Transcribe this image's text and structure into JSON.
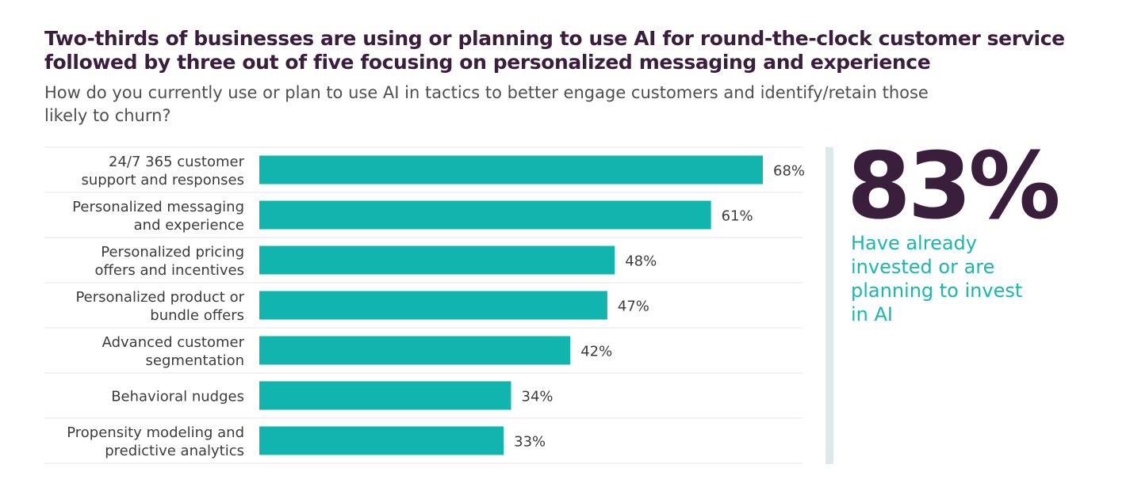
{
  "chart_data": {
    "type": "bar",
    "orientation": "horizontal",
    "title": "Two-thirds of businesses are using or planning to use AI for round-the-clock customer service followed by three out of five focusing on personalized messaging and experience",
    "subtitle": "How do you currently use or plan to use AI in tactics to better engage customers and identify/retain those likely to churn?",
    "categories": [
      [
        "24/7 365 customer",
        "support and responses"
      ],
      [
        "Personalized messaging",
        "and experience"
      ],
      [
        "Personalized pricing",
        "offers and incentives"
      ],
      [
        "Personalized product or",
        "bundle offers"
      ],
      [
        "Advanced customer",
        "segmentation"
      ],
      [
        "Behavioral nudges"
      ],
      [
        "Propensity modeling and",
        "predictive analytics"
      ]
    ],
    "values": [
      68,
      61,
      48,
      47,
      42,
      34,
      33
    ],
    "value_labels": [
      "68%",
      "61%",
      "48%",
      "47%",
      "42%",
      "34%",
      "33%"
    ],
    "unit": "%",
    "xlim": [
      0,
      100
    ],
    "bar_color": "#12b5ae"
  },
  "callout": {
    "value": "83%",
    "caption": "Have already invested or are planning to invest in AI"
  },
  "colors": {
    "title": "#3a1f3d",
    "accent": "#1ab7b1",
    "text": "#3c3c3c",
    "divider": "#dce9ec"
  }
}
